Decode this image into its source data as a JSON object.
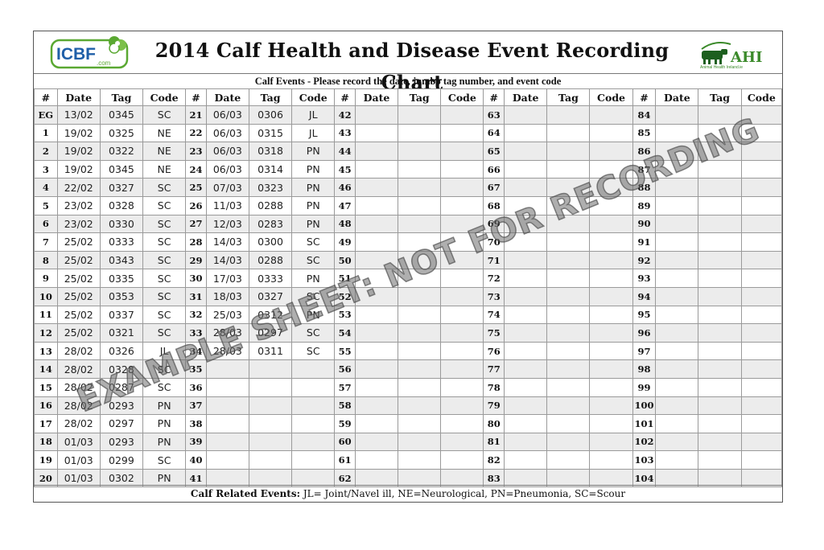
{
  "header": {
    "title": "2014 Calf Health and Disease Event Recording Chart",
    "logo_left": "ICBF",
    "logo_left_suffix": ".com",
    "logo_right": "AHI",
    "logo_right_sub": "Animal Health Ireland.ie"
  },
  "subtitle": "Calf  Events - Please record the date, jumbo tag number, and event code",
  "columns": {
    "num": "#",
    "date": "Date",
    "tag": "Tag",
    "code": "Code"
  },
  "records": {
    "col1": [
      {
        "n": "EG",
        "date": "13/02",
        "tag": "0345",
        "code": "SC"
      },
      {
        "n": "1",
        "date": "19/02",
        "tag": "0325",
        "code": "NE"
      },
      {
        "n": "2",
        "date": "19/02",
        "tag": "0322",
        "code": "NE"
      },
      {
        "n": "3",
        "date": "19/02",
        "tag": "0345",
        "code": "NE"
      },
      {
        "n": "4",
        "date": "22/02",
        "tag": "0327",
        "code": "SC"
      },
      {
        "n": "5",
        "date": "23/02",
        "tag": "0328",
        "code": "SC"
      },
      {
        "n": "6",
        "date": "23/02",
        "tag": "0330",
        "code": "SC"
      },
      {
        "n": "7",
        "date": "25/02",
        "tag": "0333",
        "code": "SC"
      },
      {
        "n": "8",
        "date": "25/02",
        "tag": "0343",
        "code": "SC"
      },
      {
        "n": "9",
        "date": "25/02",
        "tag": "0335",
        "code": "SC"
      },
      {
        "n": "10",
        "date": "25/02",
        "tag": "0353",
        "code": "SC"
      },
      {
        "n": "11",
        "date": "25/02",
        "tag": "0337",
        "code": "SC"
      },
      {
        "n": "12",
        "date": "25/02",
        "tag": "0321",
        "code": "SC"
      },
      {
        "n": "13",
        "date": "28/02",
        "tag": "0326",
        "code": "JL"
      },
      {
        "n": "14",
        "date": "28/02",
        "tag": "0328",
        "code": "SC"
      },
      {
        "n": "15",
        "date": "28/02",
        "tag": "0287",
        "code": "SC"
      },
      {
        "n": "16",
        "date": "28/02",
        "tag": "0293",
        "code": "PN"
      },
      {
        "n": "17",
        "date": "28/02",
        "tag": "0297",
        "code": "PN"
      },
      {
        "n": "18",
        "date": "01/03",
        "tag": "0293",
        "code": "PN"
      },
      {
        "n": "19",
        "date": "01/03",
        "tag": "0299",
        "code": "SC"
      },
      {
        "n": "20",
        "date": "01/03",
        "tag": "0302",
        "code": "PN"
      }
    ],
    "col2": [
      {
        "n": "21",
        "date": "06/03",
        "tag": "0306",
        "code": "JL"
      },
      {
        "n": "22",
        "date": "06/03",
        "tag": "0315",
        "code": "JL"
      },
      {
        "n": "23",
        "date": "06/03",
        "tag": "0318",
        "code": "PN"
      },
      {
        "n": "24",
        "date": "06/03",
        "tag": "0314",
        "code": "PN"
      },
      {
        "n": "25",
        "date": "07/03",
        "tag": "0323",
        "code": "PN"
      },
      {
        "n": "26",
        "date": "11/03",
        "tag": "0288",
        "code": "PN"
      },
      {
        "n": "27",
        "date": "12/03",
        "tag": "0283",
        "code": "PN"
      },
      {
        "n": "28",
        "date": "14/03",
        "tag": "0300",
        "code": "SC"
      },
      {
        "n": "29",
        "date": "14/03",
        "tag": "0288",
        "code": "SC"
      },
      {
        "n": "30",
        "date": "17/03",
        "tag": "0333",
        "code": "PN"
      },
      {
        "n": "31",
        "date": "18/03",
        "tag": "0327",
        "code": "SC"
      },
      {
        "n": "32",
        "date": "25/03",
        "tag": "0312",
        "code": "PN"
      },
      {
        "n": "33",
        "date": "28/03",
        "tag": "0297",
        "code": "SC"
      },
      {
        "n": "34",
        "date": "28/03",
        "tag": "0311",
        "code": "SC"
      },
      {
        "n": "35",
        "date": "",
        "tag": "",
        "code": ""
      },
      {
        "n": "36",
        "date": "",
        "tag": "",
        "code": ""
      },
      {
        "n": "37",
        "date": "",
        "tag": "",
        "code": ""
      },
      {
        "n": "38",
        "date": "",
        "tag": "",
        "code": ""
      },
      {
        "n": "39",
        "date": "",
        "tag": "",
        "code": ""
      },
      {
        "n": "40",
        "date": "",
        "tag": "",
        "code": ""
      },
      {
        "n": "41",
        "date": "",
        "tag": "",
        "code": ""
      }
    ],
    "col3_numbers": [
      "42",
      "43",
      "44",
      "45",
      "46",
      "47",
      "48",
      "49",
      "50",
      "51",
      "52",
      "53",
      "54",
      "55",
      "56",
      "57",
      "58",
      "59",
      "60",
      "61",
      "62"
    ],
    "col4_numbers": [
      "63",
      "64",
      "65",
      "66",
      "67",
      "68",
      "69",
      "70",
      "71",
      "72",
      "73",
      "74",
      "75",
      "76",
      "77",
      "78",
      "79",
      "80",
      "81",
      "82",
      "83"
    ],
    "col5_numbers": [
      "84",
      "85",
      "86",
      "87",
      "88",
      "89",
      "90",
      "91",
      "92",
      "93",
      "94",
      "95",
      "96",
      "97",
      "98",
      "99",
      "100",
      "101",
      "102",
      "103",
      "104"
    ]
  },
  "footer": {
    "label": "Calf Related Events:",
    "text": " JL= Joint/Navel ill, NE=Neurological, PN=Pneumonia, SC=Scour"
  },
  "watermark": "EXAMPLE SHEET: NOT FOR RECORDING",
  "colors": {
    "icbf_green": "#5aa832",
    "icbf_blue": "#1f5fa8",
    "ahi_green": "#3b8a2a",
    "ahi_dark": "#1d5f1f",
    "shade": "#ececec"
  }
}
